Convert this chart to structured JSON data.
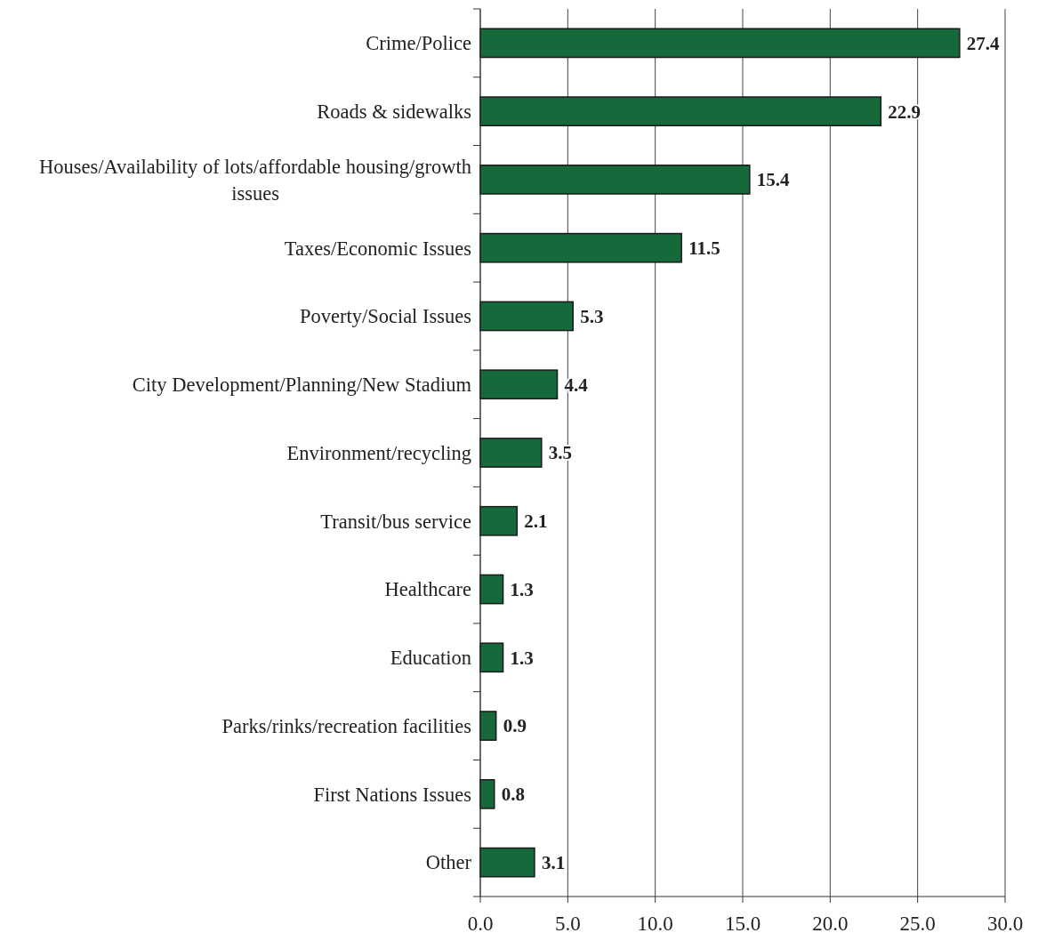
{
  "chart_data": {
    "type": "bar",
    "orientation": "horizontal",
    "categories": [
      "Crime/Police",
      "Roads & sidewalks",
      "Houses/Availability of lots/affordable housing/growth issues",
      "Taxes/Economic Issues",
      "Poverty/Social Issues",
      "City Development/Planning/New Stadium",
      "Environment/recycling",
      "Transit/bus service",
      "Healthcare",
      "Education",
      "Parks/rinks/recreation facilities",
      "First Nations Issues",
      "Other"
    ],
    "values": [
      27.4,
      22.9,
      15.4,
      11.5,
      5.3,
      4.4,
      3.5,
      2.1,
      1.3,
      1.3,
      0.9,
      0.8,
      3.1
    ],
    "color": "#15693a",
    "xlim": [
      0,
      30
    ],
    "xticks": [
      {
        "value": 0,
        "label": "0.0"
      },
      {
        "value": 5,
        "label": "5.0"
      },
      {
        "value": 10,
        "label": "10.0"
      },
      {
        "value": 15,
        "label": "15.0"
      },
      {
        "value": 20,
        "label": "20.0"
      },
      {
        "value": 25,
        "label": "25.0"
      },
      {
        "value": 30,
        "label": "30.0"
      }
    ],
    "grid": "x",
    "data_labels": true
  }
}
